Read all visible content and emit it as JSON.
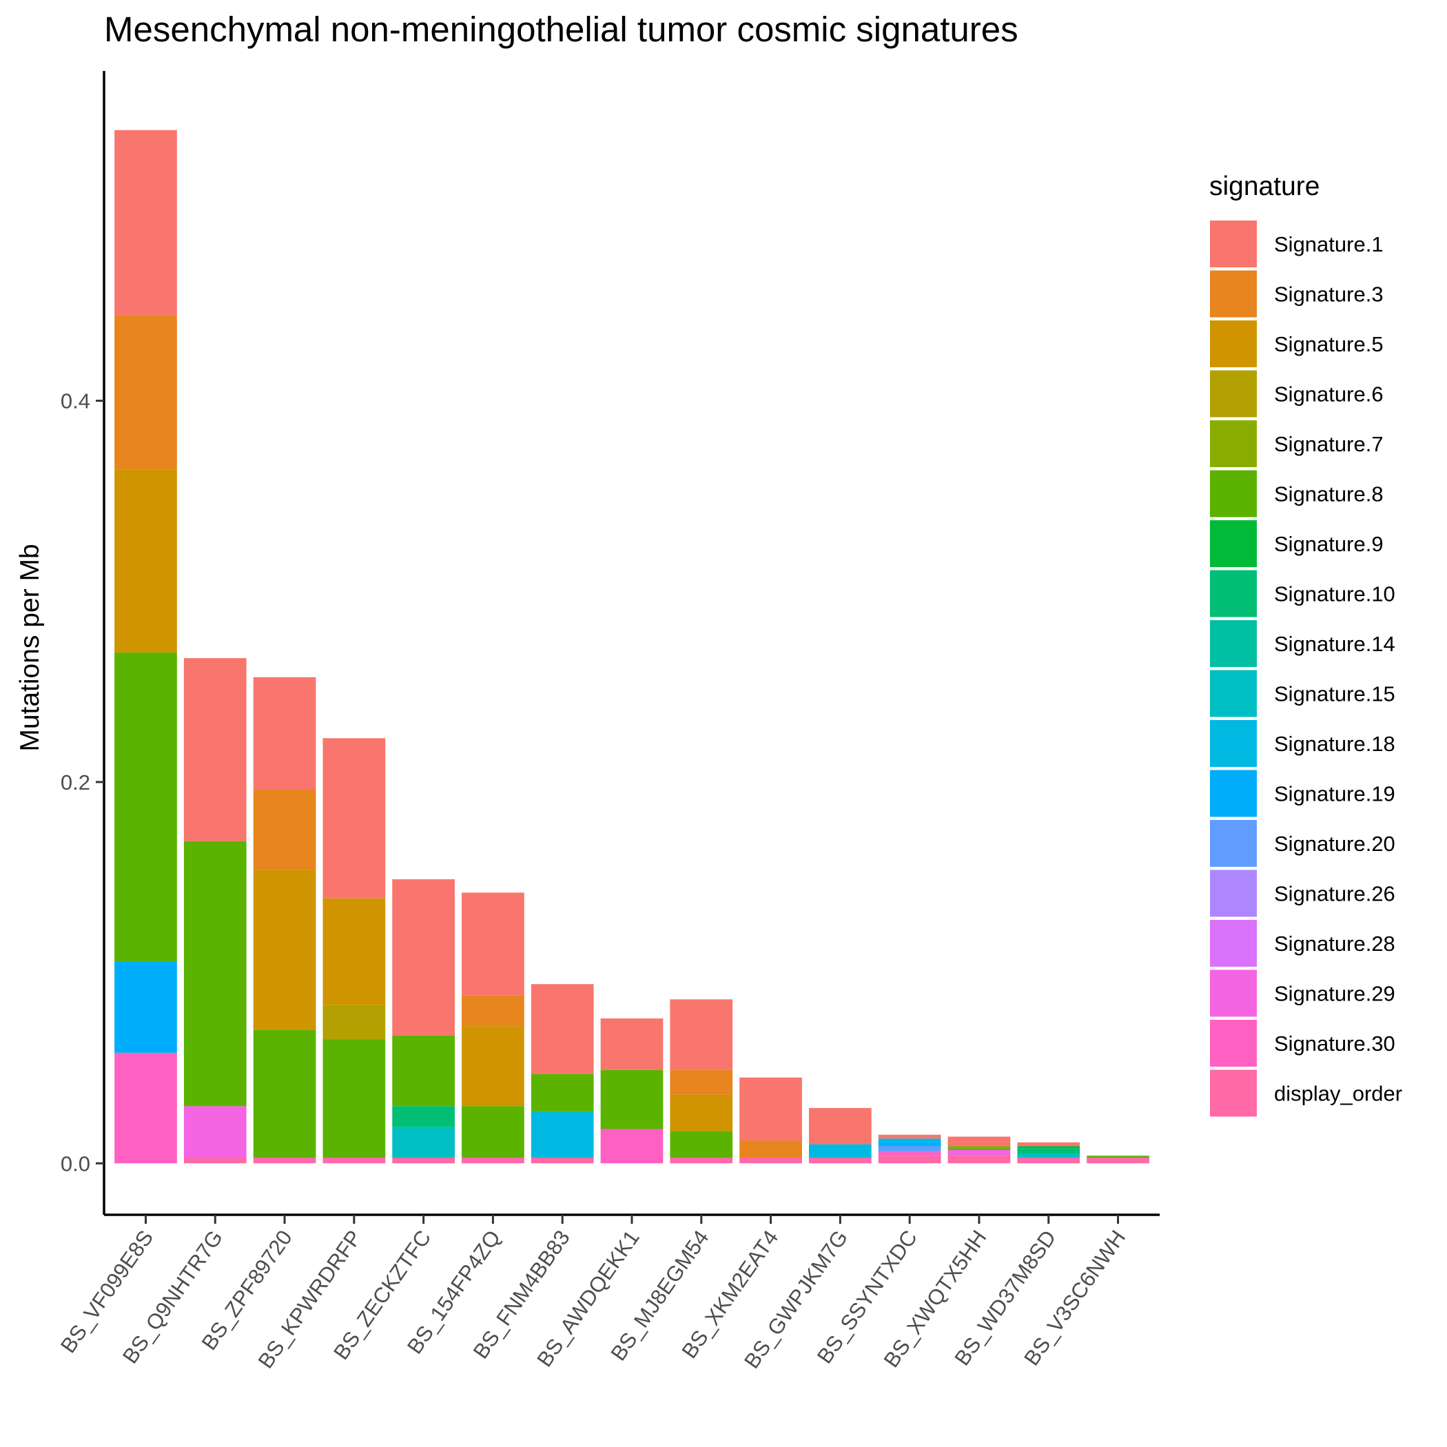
{
  "chart_data": {
    "type": "bar",
    "stacked": true,
    "title": "Mesenchymal non-meningothelial tumor cosmic signatures",
    "xlabel": "",
    "ylabel": "Mutations per Mb",
    "ylim": [
      -0.027,
      0.573
    ],
    "yticks": [
      0.0,
      0.2,
      0.4
    ],
    "ytick_labels": [
      "0.0",
      "0.2",
      "0.4"
    ],
    "grid": false,
    "legend": {
      "title": "signature",
      "position": "right",
      "entries": [
        {
          "name": "Signature.1",
          "color": "#F8766D"
        },
        {
          "name": "Signature.3",
          "color": "#E7851E"
        },
        {
          "name": "Signature.5",
          "color": "#D09400"
        },
        {
          "name": "Signature.6",
          "color": "#B2A100"
        },
        {
          "name": "Signature.7",
          "color": "#89AC00"
        },
        {
          "name": "Signature.8",
          "color": "#5BB300"
        },
        {
          "name": "Signature.9",
          "color": "#00BA38"
        },
        {
          "name": "Signature.10",
          "color": "#00BF74"
        },
        {
          "name": "Signature.14",
          "color": "#00C0A3"
        },
        {
          "name": "Signature.15",
          "color": "#00BFC4"
        },
        {
          "name": "Signature.18",
          "color": "#00B9E3"
        },
        {
          "name": "Signature.19",
          "color": "#00ADFA"
        },
        {
          "name": "Signature.20",
          "color": "#619CFF"
        },
        {
          "name": "Signature.26",
          "color": "#AE87FF"
        },
        {
          "name": "Signature.28",
          "color": "#DB72FB"
        },
        {
          "name": "Signature.29",
          "color": "#F564E3"
        },
        {
          "name": "Signature.30",
          "color": "#FF61C3"
        },
        {
          "name": "display_order",
          "color": "#FF69A8"
        }
      ]
    },
    "categories": [
      "BS_VF099E8S",
      "BS_Q9NHTR7G",
      "BS_ZPF89720",
      "BS_KPWRDRFP",
      "BS_ZECKZTFC",
      "BS_154FP4ZQ",
      "BS_FNM4BB83",
      "BS_AWDQEKK1",
      "BS_MJ8EGM54",
      "BS_XKM2EAT4",
      "BS_GWPJKM7G",
      "BS_SSYNTXDC",
      "BS_XWQTX5HH",
      "BS_WD37M8SD",
      "BS_V3SC6NWH"
    ],
    "series": [
      {
        "name": "Signature.1",
        "values": [
          0.097,
          0.096,
          0.059,
          0.084,
          0.082,
          0.054,
          0.047,
          0.027,
          0.037,
          0.033,
          0.019,
          0.002,
          0.005,
          0.002,
          0.0
        ]
      },
      {
        "name": "Signature.3",
        "values": [
          0.081,
          0.0,
          0.042,
          0.0,
          0.0,
          0.016,
          0.0,
          0.0,
          0.013,
          0.009,
          0.0,
          0.0,
          0.0,
          0.0,
          0.0
        ]
      },
      {
        "name": "Signature.5",
        "values": [
          0.096,
          0.0,
          0.084,
          0.056,
          0.0,
          0.042,
          0.0,
          0.0,
          0.019,
          0.0,
          0.0,
          0.0,
          0.0,
          0.0,
          0.0
        ]
      },
      {
        "name": "Signature.6",
        "values": [
          0.0,
          0.0,
          0.0,
          0.018,
          0.0,
          0.0,
          0.0,
          0.0,
          0.0,
          0.0,
          0.0,
          0.0,
          0.0,
          0.0,
          0.0
        ]
      },
      {
        "name": "Signature.7",
        "values": [
          0.0,
          0.0,
          0.0,
          0.0,
          0.0,
          0.0,
          0.0,
          0.0,
          0.0,
          0.0,
          0.0,
          0.0,
          0.001,
          0.0,
          0.0
        ]
      },
      {
        "name": "Signature.8",
        "values": [
          0.162,
          0.139,
          0.067,
          0.062,
          0.037,
          0.027,
          0.02,
          0.031,
          0.014,
          0.0,
          0.0,
          0.0,
          0.001,
          0.0,
          0.001
        ]
      },
      {
        "name": "Signature.9",
        "values": [
          0.0,
          0.0,
          0.0,
          0.0,
          0.0,
          0.0,
          0.0,
          0.0,
          0.0,
          0.0,
          0.0,
          0.0,
          0.0,
          0.001,
          0.0
        ]
      },
      {
        "name": "Signature.10",
        "values": [
          0.0,
          0.0,
          0.0,
          0.0,
          0.011,
          0.0,
          0.0,
          0.0,
          0.0,
          0.0,
          0.0,
          0.0,
          0.0,
          0.003,
          0.0
        ]
      },
      {
        "name": "Signature.14",
        "values": [
          0.0,
          0.0,
          0.0,
          0.0,
          0.0,
          0.0,
          0.0,
          0.0,
          0.0,
          0.0,
          0.0,
          0.0,
          0.0,
          0.0,
          0.0
        ]
      },
      {
        "name": "Signature.15",
        "values": [
          0.0,
          0.0,
          0.0,
          0.0,
          0.016,
          0.0,
          0.0,
          0.0,
          0.0,
          0.0,
          0.0,
          0.0,
          0.0,
          0.002,
          0.0
        ]
      },
      {
        "name": "Signature.18",
        "values": [
          0.0,
          0.0,
          0.0,
          0.0,
          0.0,
          0.0,
          0.024,
          0.0,
          0.0,
          0.0,
          0.007,
          0.002,
          0.0,
          0.0,
          0.0
        ]
      },
      {
        "name": "Signature.19",
        "values": [
          0.048,
          0.0,
          0.0,
          0.0,
          0.0,
          0.0,
          0.0,
          0.0,
          0.0,
          0.0,
          0.0,
          0.002,
          0.0,
          0.0,
          0.0
        ]
      },
      {
        "name": "Signature.20",
        "values": [
          0.0,
          0.0,
          0.0,
          0.0,
          0.0,
          0.0,
          0.0,
          0.0,
          0.0,
          0.0,
          0.0,
          0.003,
          0.0,
          0.0,
          0.0
        ]
      },
      {
        "name": "Signature.26",
        "values": [
          0.0,
          0.0,
          0.0,
          0.0,
          0.0,
          0.0,
          0.0,
          0.0,
          0.0,
          0.0,
          0.0,
          0.0,
          0.0,
          0.0,
          0.0
        ]
      },
      {
        "name": "Signature.28",
        "values": [
          0.0,
          0.0,
          0.0,
          0.0,
          0.0,
          0.0,
          0.0,
          0.0,
          0.0,
          0.0,
          0.0,
          0.0,
          0.0,
          0.0,
          0.0
        ]
      },
      {
        "name": "Signature.29",
        "values": [
          0.0,
          0.027,
          0.0,
          0.0,
          0.0,
          0.0,
          0.0,
          0.0,
          0.0,
          0.0,
          0.0,
          0.0,
          0.003,
          0.0,
          0.0
        ]
      },
      {
        "name": "Signature.30",
        "values": [
          0.058,
          0.0,
          0.0,
          0.0,
          0.0,
          0.0,
          0.0,
          0.018,
          0.0,
          0.0,
          0.0,
          0.002,
          0.0,
          0.0,
          0.0
        ]
      },
      {
        "name": "display_order",
        "values": [
          0.0,
          0.003,
          0.003,
          0.003,
          0.003,
          0.003,
          0.003,
          0.0,
          0.003,
          0.003,
          0.003,
          0.004,
          0.004,
          0.003,
          0.003
        ]
      }
    ]
  }
}
